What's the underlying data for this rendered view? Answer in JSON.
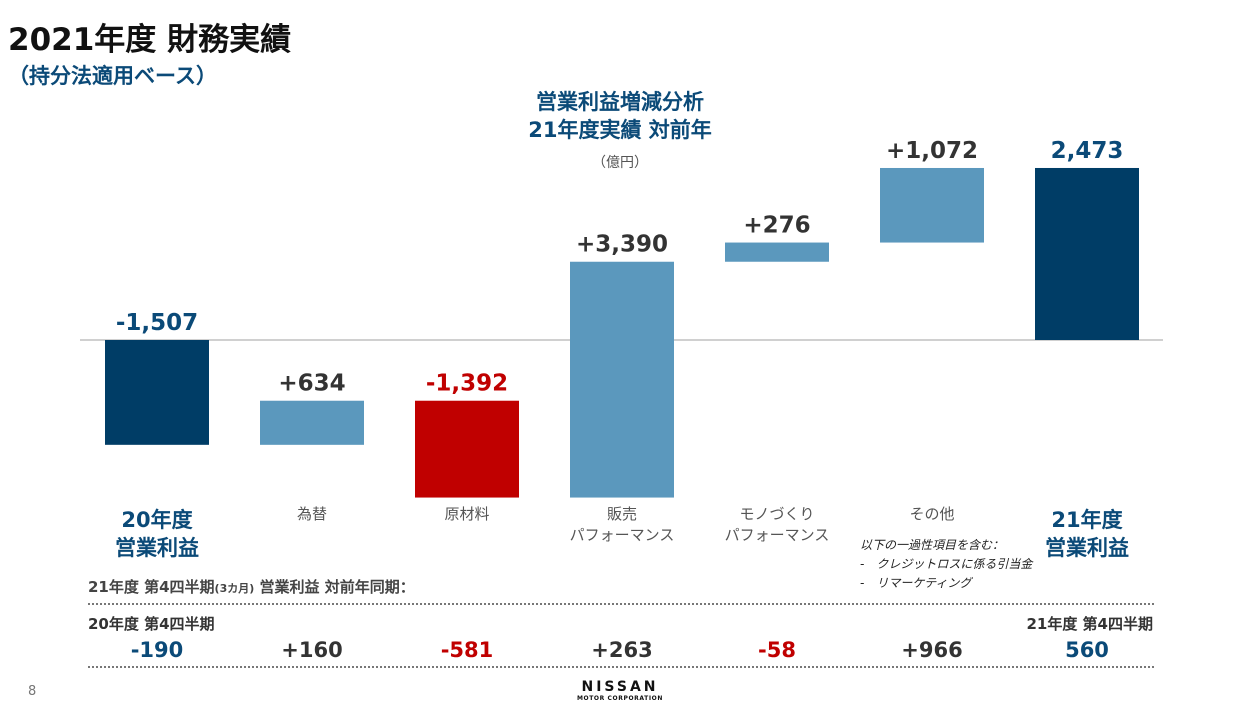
{
  "page": {
    "title": "2021年度 財務実績",
    "subtitle": "（持分法適用ベース）",
    "page_number": "8"
  },
  "chart_data": {
    "type": "waterfall",
    "title": "営業利益増減分析",
    "subtitle": "21年度実績 対前年",
    "unit": "（億円）",
    "categories": [
      "20年度\n営業利益",
      "為替",
      "原材料",
      "販売\nパフォーマンス",
      "モノづくり\nパフォーマンス",
      "その他",
      "21年度\n営業利益"
    ],
    "values": [
      -1507,
      634,
      -1392,
      3390,
      276,
      1072,
      2473
    ],
    "value_labels": [
      "-1,507",
      "+634",
      "-1,392",
      "+3,390",
      "+276",
      "+1,072",
      "2,473"
    ],
    "kinds": [
      "total",
      "delta",
      "delta",
      "delta",
      "delta",
      "delta",
      "total"
    ],
    "colors": {
      "total": "#003d66",
      "increase": "#5b98bd",
      "decrease": "#c00000",
      "label_default": "#333333",
      "label_total": "#0b4a78",
      "label_negative": "#c00000"
    },
    "highlight_negative": [
      false,
      false,
      true,
      false,
      false,
      false,
      false
    ],
    "ylim": [
      -3600,
      4300
    ],
    "baseline": 0,
    "note": {
      "heading": "以下の一過性項目を含む：",
      "items": [
        "-　クレジットロスに係る引当金",
        "-　リマーケティング"
      ]
    }
  },
  "q4": {
    "heading_main": "21年度 第4四半期",
    "heading_small": "(3カ月)",
    "heading_rest": " 営業利益 対前年同期：",
    "left_label": "20年度 第4四半期",
    "right_label": "21年度 第4四半期",
    "values": [
      "-190",
      "+160",
      "-581",
      "+263",
      "-58",
      "+966",
      "560"
    ],
    "value_kinds": [
      "total",
      "pos",
      "neg",
      "pos",
      "neg",
      "pos",
      "total"
    ]
  },
  "logo": {
    "name": "NISSAN",
    "sub": "MOTOR CORPORATION"
  }
}
